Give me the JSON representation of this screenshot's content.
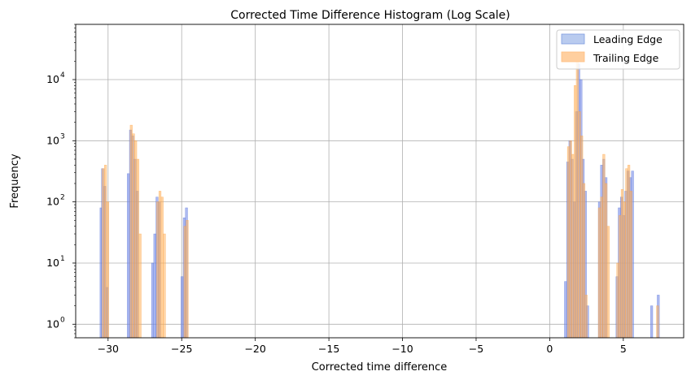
{
  "chart_data": {
    "type": "histogram",
    "title": "Corrected Time Difference Histogram (Log Scale)",
    "xlabel": "Corrected time difference",
    "ylabel": "Frequency",
    "xlim": [
      -32.2,
      9.1
    ],
    "ylim": [
      0.6,
      80000
    ],
    "yscale": "log",
    "grid": true,
    "legend_position": "top-right",
    "x_ticks": [
      -30,
      -25,
      -20,
      -15,
      -10,
      -5,
      0,
      5
    ],
    "x_tick_labels": [
      "−30",
      "−25",
      "−20",
      "−15",
      "−10",
      "−5",
      "0",
      "5"
    ],
    "y_ticks": [
      1,
      10,
      100,
      1000,
      10000
    ],
    "y_tick_labels": [
      "10",
      "10",
      "10",
      "10",
      "10"
    ],
    "y_tick_exponents": [
      "0",
      "1",
      "2",
      "3",
      "4"
    ],
    "series": [
      {
        "name": "Leading Edge",
        "color": "#7a8ee8",
        "edge_color": "#4f6fd6",
        "bins": [
          [
            -30.55,
            -30.45,
            80
          ],
          [
            -30.45,
            -30.3,
            350
          ],
          [
            -30.3,
            -30.15,
            180
          ],
          [
            -30.15,
            -30.0,
            4
          ],
          [
            -28.7,
            -28.55,
            290
          ],
          [
            -28.55,
            -28.4,
            1500
          ],
          [
            -28.4,
            -28.25,
            1200
          ],
          [
            -28.25,
            -28.1,
            500
          ],
          [
            -28.1,
            -27.95,
            150
          ],
          [
            -27.05,
            -26.9,
            10
          ],
          [
            -26.9,
            -26.75,
            30
          ],
          [
            -26.75,
            -26.6,
            120
          ],
          [
            -26.6,
            -26.45,
            100
          ],
          [
            -25.05,
            -24.9,
            6
          ],
          [
            -24.9,
            -24.75,
            55
          ],
          [
            -24.75,
            -24.6,
            80
          ],
          [
            1.0,
            1.15,
            5
          ],
          [
            1.15,
            1.3,
            450
          ],
          [
            1.3,
            1.45,
            1000
          ],
          [
            1.45,
            1.6,
            500
          ],
          [
            1.6,
            1.75,
            100
          ],
          [
            1.75,
            1.9,
            3000
          ],
          [
            1.9,
            2.05,
            18000
          ],
          [
            2.05,
            2.2,
            10000
          ],
          [
            2.2,
            2.35,
            500
          ],
          [
            2.35,
            2.5,
            150
          ],
          [
            2.5,
            2.65,
            2
          ],
          [
            3.3,
            3.45,
            100
          ],
          [
            3.45,
            3.6,
            400
          ],
          [
            3.6,
            3.75,
            500
          ],
          [
            3.75,
            3.9,
            250
          ],
          [
            4.5,
            4.65,
            6
          ],
          [
            4.65,
            4.8,
            80
          ],
          [
            4.8,
            4.95,
            120
          ],
          [
            4.95,
            5.1,
            60
          ],
          [
            5.1,
            5.25,
            150
          ],
          [
            5.25,
            5.4,
            320
          ],
          [
            5.4,
            5.55,
            250
          ],
          [
            5.55,
            5.7,
            320
          ],
          [
            6.85,
            7.0,
            2
          ],
          [
            7.3,
            7.45,
            3
          ]
        ]
      },
      {
        "name": "Trailing Edge",
        "color": "#ffb35c",
        "edge_color": "#ffa040",
        "bins": [
          [
            -30.4,
            -30.25,
            350
          ],
          [
            -30.25,
            -30.1,
            400
          ],
          [
            -30.1,
            -29.95,
            100
          ],
          [
            -28.5,
            -28.35,
            1800
          ],
          [
            -28.35,
            -28.2,
            1300
          ],
          [
            -28.2,
            -28.05,
            1000
          ],
          [
            -28.05,
            -27.9,
            500
          ],
          [
            -27.9,
            -27.75,
            30
          ],
          [
            -26.7,
            -26.55,
            100
          ],
          [
            -26.55,
            -26.4,
            150
          ],
          [
            -26.4,
            -26.25,
            120
          ],
          [
            -26.25,
            -26.1,
            30
          ],
          [
            -24.85,
            -24.7,
            40
          ],
          [
            -24.7,
            -24.55,
            50
          ],
          [
            1.2,
            1.35,
            800
          ],
          [
            1.35,
            1.5,
            1000
          ],
          [
            1.5,
            1.65,
            600
          ],
          [
            1.65,
            1.8,
            8000
          ],
          [
            1.8,
            1.95,
            20000
          ],
          [
            1.95,
            2.1,
            3000
          ],
          [
            2.1,
            2.25,
            1200
          ],
          [
            2.25,
            2.4,
            200
          ],
          [
            2.4,
            2.55,
            3
          ],
          [
            3.3,
            3.45,
            80
          ],
          [
            3.45,
            3.6,
            120
          ],
          [
            3.6,
            3.75,
            600
          ],
          [
            3.75,
            3.9,
            200
          ],
          [
            3.9,
            4.05,
            40
          ],
          [
            4.55,
            4.7,
            10
          ],
          [
            4.7,
            4.85,
            60
          ],
          [
            4.85,
            5.0,
            160
          ],
          [
            5.0,
            5.15,
            100
          ],
          [
            5.15,
            5.3,
            350
          ],
          [
            5.3,
            5.45,
            400
          ],
          [
            5.45,
            5.6,
            150
          ],
          [
            7.25,
            7.4,
            2
          ]
        ]
      }
    ]
  }
}
